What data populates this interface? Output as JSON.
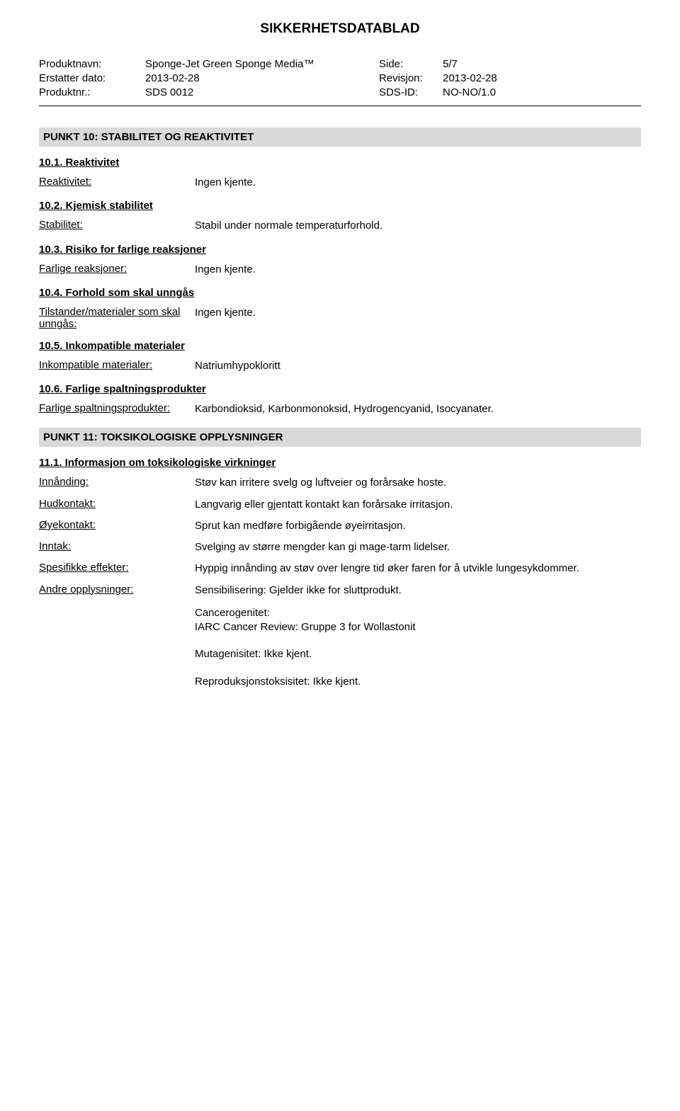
{
  "doc_title": "SIKKERHETSDATABLAD",
  "meta": {
    "rows": [
      {
        "label": "Produktnavn:",
        "value": "Sponge-Jet Green Sponge Media™",
        "rlabel": "Side:",
        "rvalue": "5/7"
      },
      {
        "label": "Erstatter dato:",
        "value": "2013-02-28",
        "rlabel": "Revisjon:",
        "rvalue": "2013-02-28"
      },
      {
        "label": "Produktnr.:",
        "value": "SDS 0012",
        "rlabel": "SDS-ID:",
        "rvalue": "NO-NO/1.0"
      }
    ]
  },
  "section10": {
    "heading": "PUNKT 10: STABILITET OG REAKTIVITET",
    "s1": {
      "title": "10.1. Reaktivitet",
      "label": "Reaktivitet:",
      "value": "Ingen kjente."
    },
    "s2": {
      "title": "10.2. Kjemisk stabilitet",
      "label": "Stabilitet:",
      "value": "Stabil under normale temperaturforhold."
    },
    "s3": {
      "title": "10.3. Risiko for farlige reaksjoner",
      "label": "Farlige reaksjoner:",
      "value": "Ingen kjente."
    },
    "s4": {
      "title": "10.4. Forhold som skal unngås",
      "label": "Tilstander/materialer som skal unngås:",
      "value": "Ingen kjente."
    },
    "s5": {
      "title": "10.5. Inkompatible materialer",
      "label": "Inkompatible materialer:",
      "value": "Natriumhypokloritt"
    },
    "s6": {
      "title": "10.6. Farlige spaltningsprodukter",
      "label": "Farlige spaltningsprodukter:",
      "value": "Karbondioksid, Karbonmonoksid, Hydrogencyanid, Isocyanater."
    }
  },
  "section11": {
    "heading": "PUNKT 11: TOKSIKOLOGISKE OPPLYSNINGER",
    "subhead": "11.1. Informasjon om toksikologiske virkninger",
    "rows": [
      {
        "label": "Innånding:",
        "value": "Støv kan irritere svelg og luftveier og forårsake hoste."
      },
      {
        "label": "Hudkontakt:",
        "value": "Langvarig eller gjentatt kontakt kan forårsake irritasjon."
      },
      {
        "label": "Øyekontakt:",
        "value": "Sprut kan medføre forbigående øyeirritasjon."
      },
      {
        "label": "Inntak:",
        "value": "Svelging av større mengder kan gi mage-tarm lidelser."
      },
      {
        "label": "Spesifikke effekter:",
        "value": "Hyppig innånding av støv over lengre tid øker faren for å utvikle lungesykdommer."
      },
      {
        "label": "Andre opplysninger:",
        "value": "Sensibilisering: Gjelder ikke for sluttprodukt."
      }
    ],
    "extras": [
      "Cancerogenitet:\nIARC Cancer Review: Gruppe 3 for Wollastonit",
      "Mutagenisitet: Ikke kjent.",
      "Reproduksjonstoksisitet: Ikke kjent."
    ]
  }
}
